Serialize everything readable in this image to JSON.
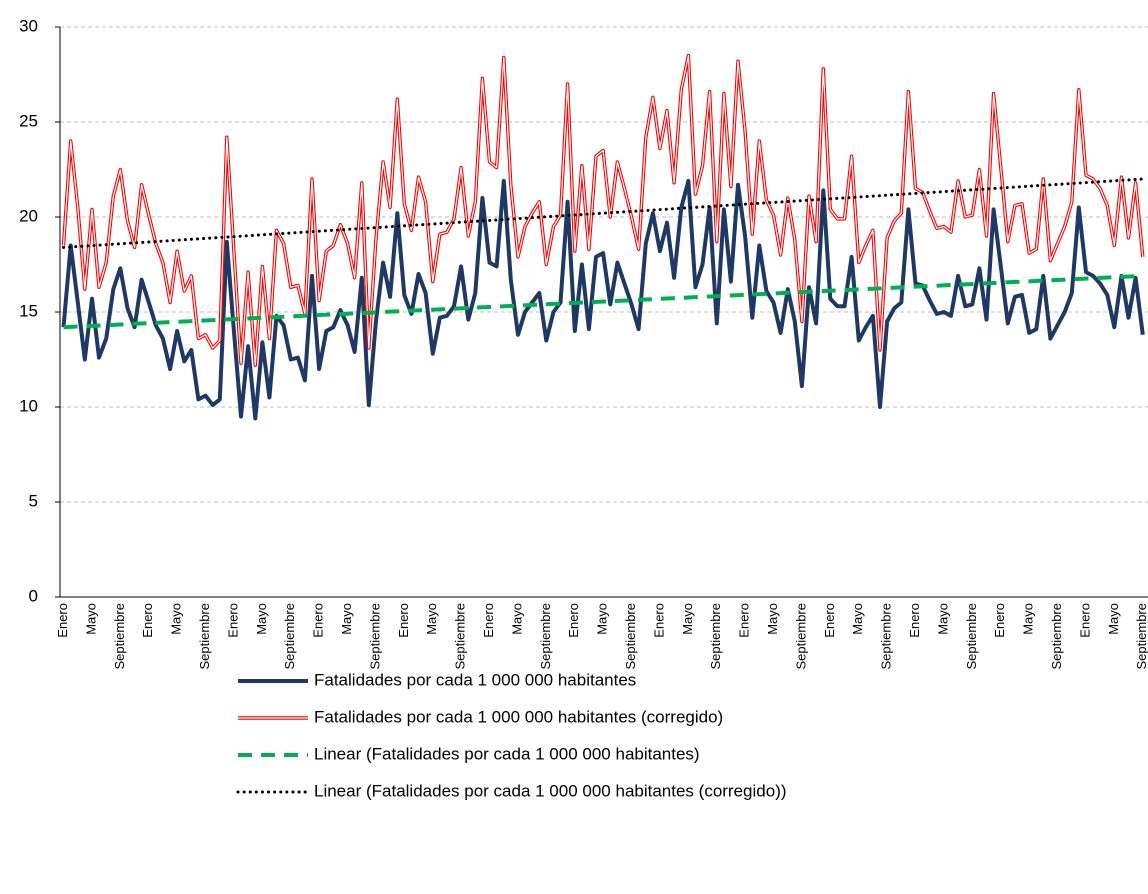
{
  "chart_data": {
    "type": "line",
    "categories": [
      "Enero",
      null,
      null,
      null,
      "Mayo",
      null,
      null,
      null,
      "Septiembre",
      null,
      null,
      null,
      "Enero",
      null,
      null,
      null,
      "Mayo",
      null,
      null,
      null,
      "Septiembre",
      null,
      null,
      null,
      "Enero",
      null,
      null,
      null,
      "Mayo",
      null,
      null,
      null,
      "Septiembre",
      null,
      null,
      null,
      "Enero",
      null,
      null,
      null,
      "Mayo",
      null,
      null,
      null,
      "Septiembre",
      null,
      null,
      null,
      "Enero",
      null,
      null,
      null,
      "Mayo",
      null,
      null,
      null,
      "Septiembre",
      null,
      null,
      null,
      "Enero",
      null,
      null,
      null,
      "Mayo",
      null,
      null,
      null,
      "Septiembre",
      null,
      null,
      null,
      "Enero",
      null,
      null,
      null,
      "Mayo",
      null,
      null,
      null,
      "Septiembre",
      null,
      null,
      null,
      "Enero",
      null,
      null,
      null,
      "Mayo",
      null,
      null,
      null,
      "Septiembre",
      null,
      null,
      null,
      "Enero",
      null,
      null,
      null,
      "Mayo",
      null,
      null,
      null,
      "Septiembre",
      null,
      null,
      null,
      "Enero",
      null,
      null,
      null,
      "Mayo",
      null,
      null,
      null,
      "Septiembre",
      null,
      null,
      null,
      "Enero",
      null,
      null,
      null,
      "Mayo",
      null,
      null,
      null,
      "Septiembre",
      null,
      null,
      null,
      "Enero",
      null,
      null,
      null,
      "Mayo",
      null,
      null,
      null,
      "Septiembre",
      null,
      null,
      null,
      "Enero",
      null,
      null,
      null,
      "Mayo",
      null,
      null,
      null,
      "Septiembre"
    ],
    "series": [
      {
        "name": "Fatalidades por cada 1 000 000 habitantes",
        "color": "#1f3864",
        "style": "solid",
        "values": [
          14.2,
          18.5,
          15.5,
          12.5,
          15.7,
          12.6,
          13.6,
          16.2,
          17.3,
          15.2,
          14.2,
          16.7,
          15.5,
          14.3,
          13.6,
          12.0,
          14.0,
          12.4,
          13.0,
          10.4,
          10.6,
          10.1,
          10.4,
          18.7,
          14.0,
          9.5,
          13.2,
          9.4,
          13.4,
          10.5,
          14.8,
          14.3,
          12.5,
          12.6,
          11.4,
          16.9,
          12.0,
          14.0,
          14.2,
          15.1,
          14.3,
          12.9,
          16.8,
          10.1,
          14.5,
          17.6,
          15.8,
          20.2,
          15.9,
          14.9,
          17.0,
          16.0,
          12.8,
          14.7,
          14.8,
          15.3,
          17.4,
          14.6,
          16.0,
          21.0,
          17.6,
          17.4,
          21.9,
          16.7,
          13.8,
          15.0,
          15.5,
          16.0,
          13.5,
          15.0,
          15.5,
          20.8,
          14.0,
          17.5,
          14.1,
          17.9,
          18.1,
          15.4,
          17.6,
          16.5,
          15.4,
          14.1,
          18.6,
          20.2,
          18.2,
          19.7,
          16.8,
          20.5,
          21.9,
          16.3,
          17.5,
          20.5,
          14.4,
          20.4,
          16.6,
          21.7,
          19.0,
          14.7,
          18.5,
          16.1,
          15.5,
          13.9,
          16.2,
          14.5,
          11.1,
          16.3,
          14.4,
          21.4,
          15.7,
          15.3,
          15.3,
          17.9,
          13.5,
          14.2,
          14.8,
          10.0,
          14.5,
          15.2,
          15.5,
          20.4,
          16.5,
          16.4,
          15.6,
          14.9,
          15.0,
          14.8,
          16.9,
          15.3,
          15.4,
          17.3,
          14.6,
          20.4,
          17.4,
          14.4,
          15.8,
          15.9,
          13.9,
          14.1,
          16.9,
          13.6,
          14.3,
          15.0,
          16.0,
          20.5,
          17.1,
          16.9,
          16.5,
          15.9,
          14.2,
          16.9,
          14.7,
          16.8,
          13.8
        ]
      },
      {
        "name": "Fatalidades por cada 1 000 000 habitantes (corregido)",
        "color": "#ff0000",
        "style": "double",
        "values": [
          18.5,
          24.0,
          20.5,
          16.2,
          20.4,
          16.3,
          17.6,
          21.1,
          22.5,
          19.8,
          18.4,
          21.7,
          20.1,
          18.6,
          17.6,
          15.5,
          18.2,
          16.1,
          16.9,
          13.6,
          13.8,
          13.1,
          13.5,
          24.2,
          18.2,
          12.3,
          17.1,
          12.2,
          17.4,
          13.6,
          19.3,
          18.6,
          16.3,
          16.4,
          14.9,
          22.0,
          15.6,
          18.2,
          18.5,
          19.6,
          18.6,
          16.8,
          21.8,
          13.1,
          18.8,
          22.9,
          20.5,
          26.2,
          20.7,
          19.3,
          22.1,
          20.8,
          16.6,
          19.1,
          19.2,
          19.9,
          22.6,
          19.0,
          20.8,
          27.3,
          22.9,
          22.6,
          28.4,
          21.7,
          17.9,
          19.5,
          20.2,
          20.8,
          17.5,
          19.5,
          20.1,
          27.0,
          18.2,
          22.7,
          18.3,
          23.2,
          23.5,
          20.0,
          22.9,
          21.5,
          20.0,
          18.3,
          24.2,
          26.3,
          23.6,
          25.6,
          21.8,
          26.7,
          28.5,
          21.2,
          22.7,
          26.6,
          18.7,
          26.5,
          21.6,
          28.2,
          24.5,
          19.1,
          24.0,
          20.9,
          20.1,
          18.0,
          21.0,
          18.8,
          14.5,
          21.1,
          18.7,
          27.8,
          20.4,
          19.9,
          19.9,
          23.2,
          17.6,
          18.5,
          19.3,
          13.0,
          18.9,
          19.8,
          20.2,
          26.6,
          21.5,
          21.3,
          20.3,
          19.4,
          19.5,
          19.2,
          21.9,
          20.0,
          20.1,
          22.5,
          19.0,
          26.5,
          22.6,
          18.7,
          20.6,
          20.7,
          18.1,
          18.3,
          22.0,
          17.7,
          18.6,
          19.5,
          20.8,
          26.7,
          22.2,
          22.0,
          21.5,
          20.6,
          18.5,
          22.1,
          18.9,
          21.8,
          17.9
        ]
      }
    ],
    "trendlines": [
      {
        "name": "Linear (Fatalidades por cada 1 000 000 habitantes)",
        "color": "#00b050",
        "style": "dash",
        "start": 14.2,
        "end": 16.9
      },
      {
        "name": "Linear (Fatalidades por cada 1 000 000 habitantes (corregido))",
        "color": "#000000",
        "style": "dot",
        "start": 18.4,
        "end": 22.0
      }
    ],
    "ylim": [
      0,
      30
    ],
    "yticks": [
      0,
      5,
      10,
      15,
      20,
      25,
      30
    ],
    "grid": true
  }
}
